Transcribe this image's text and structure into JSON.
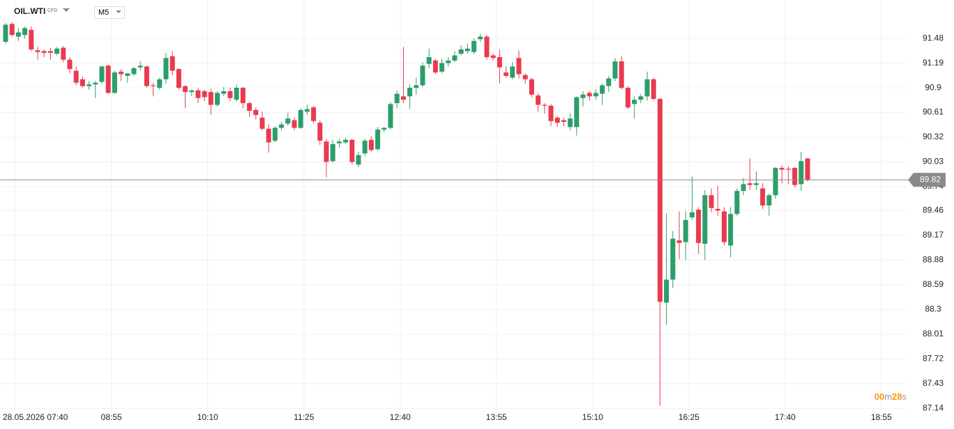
{
  "header": {
    "symbol": "OIL.WTI",
    "instrument_type": "CFD",
    "timeframe": "M5"
  },
  "chart_data": {
    "type": "candlestick",
    "up_color": "#2c9e6a",
    "down_color": "#ea3a4e",
    "grid": true,
    "ylim": [
      87.11,
      91.93
    ],
    "yticks": [
      91.48,
      91.19,
      90.9,
      90.61,
      90.32,
      90.03,
      89.74,
      89.46,
      89.17,
      88.88,
      88.59,
      88.3,
      88.01,
      87.72,
      87.43,
      87.14
    ],
    "xlim": [
      -0.87,
      140.43
    ],
    "xticks": [
      {
        "value": 1.5,
        "label": "28.05.2026 07:40"
      },
      {
        "value": 16.5,
        "label": "08:55"
      },
      {
        "value": 31.5,
        "label": "10:10"
      },
      {
        "value": 46.5,
        "label": "11:25"
      },
      {
        "value": 61.5,
        "label": "12:40"
      },
      {
        "value": 76.5,
        "label": "13:55"
      },
      {
        "value": 91.5,
        "label": "15:10"
      },
      {
        "value": 106.5,
        "label": "16:25"
      },
      {
        "value": 121.5,
        "label": "17:40"
      },
      {
        "value": 136.5,
        "label": "18:55"
      }
    ],
    "countdown": [
      "00",
      "m",
      "28",
      "s"
    ],
    "candles": [
      [
        91.44,
        91.66,
        91.42,
        91.64
      ],
      [
        91.65,
        91.67,
        91.5,
        91.52
      ],
      [
        91.5,
        91.6,
        91.45,
        91.55
      ],
      [
        91.52,
        91.62,
        91.48,
        91.6
      ],
      [
        91.58,
        91.62,
        91.33,
        91.35
      ],
      [
        91.34,
        91.38,
        91.23,
        91.32
      ],
      [
        91.33,
        91.35,
        91.26,
        91.31
      ],
      [
        91.33,
        91.37,
        91.23,
        91.31
      ],
      [
        91.3,
        91.38,
        91.28,
        91.36
      ],
      [
        91.37,
        91.39,
        91.2,
        91.23
      ],
      [
        91.23,
        91.26,
        91.07,
        91.12
      ],
      [
        91.1,
        91.15,
        90.93,
        90.96
      ],
      [
        91.0,
        91.03,
        90.9,
        90.92
      ],
      [
        90.92,
        90.98,
        90.88,
        90.94
      ],
      [
        90.94,
        90.98,
        90.78,
        90.96
      ],
      [
        90.97,
        91.16,
        90.95,
        91.15
      ],
      [
        91.16,
        91.17,
        90.83,
        90.84
      ],
      [
        90.84,
        91.1,
        90.83,
        91.08
      ],
      [
        91.09,
        91.12,
        90.98,
        91.06
      ],
      [
        91.04,
        91.07,
        90.96,
        91.07
      ],
      [
        91.06,
        91.15,
        91.04,
        91.13
      ],
      [
        91.14,
        91.21,
        91.1,
        91.16
      ],
      [
        91.15,
        91.16,
        90.9,
        90.92
      ],
      [
        90.93,
        90.96,
        90.8,
        90.92
      ],
      [
        90.9,
        91.02,
        90.88,
        91.0
      ],
      [
        91.0,
        91.31,
        90.95,
        91.25
      ],
      [
        91.27,
        91.33,
        91.05,
        91.1
      ],
      [
        91.12,
        91.13,
        90.88,
        90.9
      ],
      [
        90.92,
        90.93,
        90.66,
        90.85
      ],
      [
        90.85,
        90.88,
        90.8,
        90.87
      ],
      [
        90.87,
        90.9,
        90.72,
        90.78
      ],
      [
        90.86,
        90.88,
        90.74,
        90.79
      ],
      [
        90.85,
        90.89,
        90.58,
        90.7
      ],
      [
        90.7,
        90.86,
        90.68,
        90.84
      ],
      [
        90.83,
        90.91,
        90.8,
        90.86
      ],
      [
        90.86,
        90.9,
        90.74,
        90.78
      ],
      [
        90.76,
        90.94,
        90.74,
        90.9
      ],
      [
        90.9,
        90.91,
        90.66,
        90.72
      ],
      [
        90.72,
        90.74,
        90.56,
        90.63
      ],
      [
        90.64,
        90.67,
        90.53,
        90.58
      ],
      [
        90.55,
        90.62,
        90.4,
        90.42
      ],
      [
        90.42,
        90.47,
        90.14,
        90.26
      ],
      [
        90.28,
        90.45,
        90.26,
        90.43
      ],
      [
        90.43,
        90.5,
        90.4,
        90.47
      ],
      [
        90.48,
        90.61,
        90.46,
        90.54
      ],
      [
        90.52,
        90.55,
        90.4,
        90.43
      ],
      [
        90.43,
        90.66,
        90.42,
        90.64
      ],
      [
        90.62,
        90.7,
        90.58,
        90.65
      ],
      [
        90.67,
        90.69,
        90.48,
        90.51
      ],
      [
        90.49,
        90.52,
        90.23,
        90.28
      ],
      [
        90.27,
        90.3,
        89.85,
        90.03
      ],
      [
        90.04,
        90.29,
        90.02,
        90.24
      ],
      [
        90.25,
        90.3,
        90.2,
        90.27
      ],
      [
        90.26,
        90.31,
        90.24,
        90.29
      ],
      [
        90.29,
        90.3,
        90.0,
        90.03
      ],
      [
        90.0,
        90.15,
        89.97,
        90.11
      ],
      [
        90.13,
        90.3,
        90.1,
        90.28
      ],
      [
        90.29,
        90.33,
        90.15,
        90.17
      ],
      [
        90.18,
        90.44,
        90.16,
        90.41
      ],
      [
        90.41,
        90.44,
        90.38,
        90.43
      ],
      [
        90.43,
        90.73,
        90.41,
        90.71
      ],
      [
        90.72,
        90.87,
        90.66,
        90.83
      ],
      [
        90.8,
        91.38,
        90.72,
        90.76
      ],
      [
        90.8,
        90.94,
        90.65,
        90.9
      ],
      [
        90.9,
        91.02,
        90.82,
        90.93
      ],
      [
        90.93,
        91.2,
        90.91,
        91.16
      ],
      [
        91.18,
        91.36,
        91.13,
        91.26
      ],
      [
        91.22,
        91.24,
        91.06,
        91.08
      ],
      [
        91.09,
        91.24,
        91.07,
        91.19
      ],
      [
        91.19,
        91.26,
        91.15,
        91.22
      ],
      [
        91.22,
        91.33,
        91.2,
        91.28
      ],
      [
        91.3,
        91.4,
        91.28,
        91.35
      ],
      [
        91.33,
        91.42,
        91.3,
        91.36
      ],
      [
        91.32,
        91.48,
        91.3,
        91.45
      ],
      [
        91.47,
        91.53,
        91.44,
        91.5
      ],
      [
        91.5,
        91.52,
        91.23,
        91.26
      ],
      [
        91.28,
        91.3,
        91.22,
        91.25
      ],
      [
        91.26,
        91.35,
        90.95,
        91.14
      ],
      [
        91.08,
        91.15,
        91.02,
        91.04
      ],
      [
        91.02,
        91.2,
        91.0,
        91.15
      ],
      [
        91.25,
        91.34,
        91.01,
        91.06
      ],
      [
        91.05,
        91.07,
        90.95,
        91.0
      ],
      [
        91.0,
        91.02,
        90.79,
        90.82
      ],
      [
        90.81,
        90.84,
        90.62,
        90.7
      ],
      [
        90.7,
        90.72,
        90.6,
        90.69
      ],
      [
        90.69,
        90.71,
        90.45,
        90.51
      ],
      [
        90.55,
        90.57,
        90.44,
        90.49
      ],
      [
        90.52,
        90.55,
        90.45,
        90.5
      ],
      [
        90.44,
        90.6,
        90.4,
        90.54
      ],
      [
        90.44,
        90.8,
        90.34,
        90.79
      ],
      [
        90.78,
        90.86,
        90.68,
        90.82
      ],
      [
        90.84,
        90.86,
        90.75,
        90.8
      ],
      [
        90.8,
        90.88,
        90.76,
        90.84
      ],
      [
        90.83,
        90.95,
        90.7,
        90.93
      ],
      [
        90.92,
        91.04,
        90.85,
        91.01
      ],
      [
        91.01,
        91.25,
        90.98,
        91.21
      ],
      [
        91.21,
        91.27,
        90.88,
        90.9
      ],
      [
        90.9,
        90.92,
        90.65,
        90.67
      ],
      [
        90.71,
        90.8,
        90.54,
        90.76
      ],
      [
        90.76,
        90.83,
        90.72,
        90.8
      ],
      [
        90.8,
        91.09,
        90.75,
        91.0
      ],
      [
        91.0,
        91.02,
        90.75,
        90.77
      ],
      [
        90.77,
        90.78,
        87.17,
        88.39
      ],
      [
        88.38,
        89.43,
        88.12,
        88.65
      ],
      [
        88.65,
        89.22,
        88.55,
        89.13
      ],
      [
        89.11,
        89.45,
        88.89,
        89.08
      ],
      [
        89.09,
        89.45,
        88.88,
        89.35
      ],
      [
        89.38,
        89.86,
        89.35,
        89.44
      ],
      [
        89.47,
        89.5,
        88.95,
        89.08
      ],
      [
        89.07,
        89.7,
        88.88,
        89.64
      ],
      [
        89.64,
        89.72,
        89.44,
        89.49
      ],
      [
        89.48,
        89.75,
        89.4,
        89.46
      ],
      [
        89.45,
        89.5,
        89.05,
        89.09
      ],
      [
        89.05,
        89.5,
        88.91,
        89.42
      ],
      [
        89.42,
        89.72,
        89.4,
        89.69
      ],
      [
        89.69,
        89.84,
        89.64,
        89.77
      ],
      [
        89.78,
        90.07,
        89.7,
        89.76
      ],
      [
        89.76,
        89.92,
        89.7,
        89.78
      ],
      [
        89.72,
        89.78,
        89.48,
        89.52
      ],
      [
        89.52,
        89.66,
        89.4,
        89.64
      ],
      [
        89.64,
        89.97,
        89.6,
        89.96
      ],
      [
        89.96,
        89.99,
        89.78,
        89.94
      ],
      [
        89.95,
        89.98,
        89.77,
        89.94
      ],
      [
        89.96,
        89.97,
        89.73,
        89.76
      ],
      [
        89.77,
        90.15,
        89.69,
        90.04
      ],
      [
        90.07,
        90.08,
        89.8,
        89.82
      ]
    ]
  }
}
